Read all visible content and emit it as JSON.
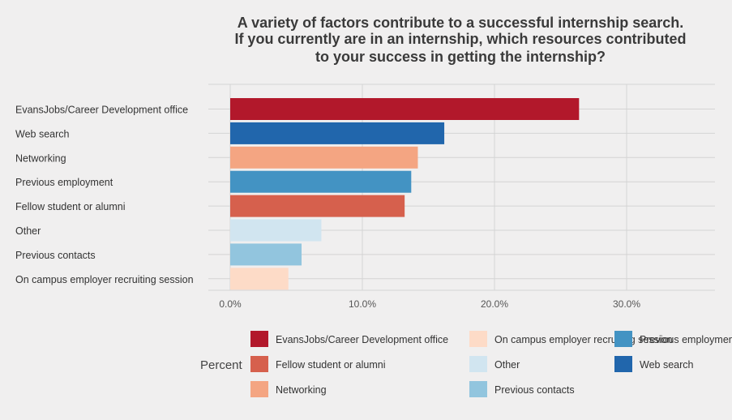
{
  "chart_data": {
    "type": "bar",
    "orientation": "horizontal",
    "title": [
      "A variety of factors contribute to a successful internship search.",
      "If you currently are in an internship, which resources contributed",
      "to your success in getting the internship?"
    ],
    "categories": [
      "EvansJobs/Career Development office",
      "Web search",
      "Networking",
      "Previous employment",
      "Fellow student or alumni",
      "Other",
      "Previous contacts",
      "On campus employer recruiting session"
    ],
    "values": [
      0.264,
      0.162,
      0.142,
      0.137,
      0.132,
      0.069,
      0.054,
      0.044
    ],
    "colors": [
      "#b2182b",
      "#2166ac",
      "#f4a582",
      "#4393c3",
      "#d6604d",
      "#d1e5f0",
      "#92c5de",
      "#fddbc7"
    ],
    "xlim": [
      0,
      0.37
    ],
    "ticks": [
      0,
      0.1,
      0.2,
      0.3
    ],
    "tick_labels": [
      "0.0%",
      "10.0%",
      "20.0%",
      "30.0%"
    ],
    "grid": true,
    "legend": {
      "title": "Percent",
      "placement": "bottom",
      "items": [
        {
          "label": "EvansJobs/Career Development office",
          "color": "#b2182b"
        },
        {
          "label": "Fellow student or alumni",
          "color": "#d6604d"
        },
        {
          "label": "Networking",
          "color": "#f4a582"
        },
        {
          "label": "On campus employer recruiting session",
          "color": "#fddbc7"
        },
        {
          "label": "Other",
          "color": "#d1e5f0"
        },
        {
          "label": "Previous contacts",
          "color": "#92c5de"
        },
        {
          "label": "Previous employment",
          "color": "#4393c3"
        },
        {
          "label": "Web search",
          "color": "#2166ac"
        }
      ]
    }
  }
}
